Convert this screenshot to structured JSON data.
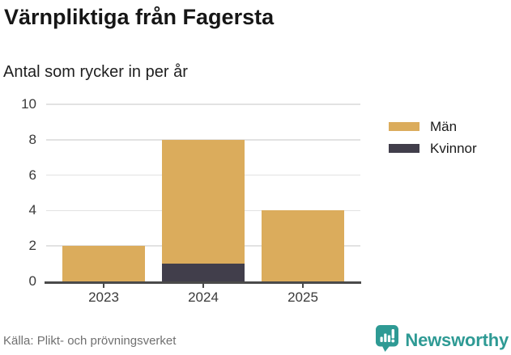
{
  "header": {
    "title": "Värnpliktiga från Fagersta",
    "subtitle": "Antal som rycker in per år"
  },
  "chart_data": {
    "type": "bar",
    "stacked": true,
    "title": "Värnpliktiga från Fagersta",
    "subtitle": "Antal som rycker in per år",
    "categories": [
      "2023",
      "2024",
      "2025"
    ],
    "series": [
      {
        "name": "Män",
        "color": "#dbac5c",
        "values": [
          2,
          7,
          4
        ]
      },
      {
        "name": "Kvinnor",
        "color": "#413e4b",
        "values": [
          0,
          1,
          0
        ]
      }
    ],
    "stack_order": [
      "Kvinnor",
      "Män"
    ],
    "stacked_totals": [
      2,
      8,
      4
    ],
    "xlabel": "",
    "ylabel": "",
    "ylim": [
      0,
      10
    ],
    "yticks": [
      0,
      2,
      4,
      6,
      8,
      10
    ],
    "grid": true,
    "legend_position": "right"
  },
  "legend": {
    "items": [
      {
        "label": "Män",
        "color": "#dbac5c"
      },
      {
        "label": "Kvinnor",
        "color": "#413e4b"
      }
    ]
  },
  "footer": {
    "source": "Källa: Plikt- och prövningsverket",
    "brand": "Newsworthy",
    "brand_color": "#2e9a94"
  },
  "icons": {
    "brand_logo": "newsworthy-speech-bubble-bar-chart-icon"
  }
}
